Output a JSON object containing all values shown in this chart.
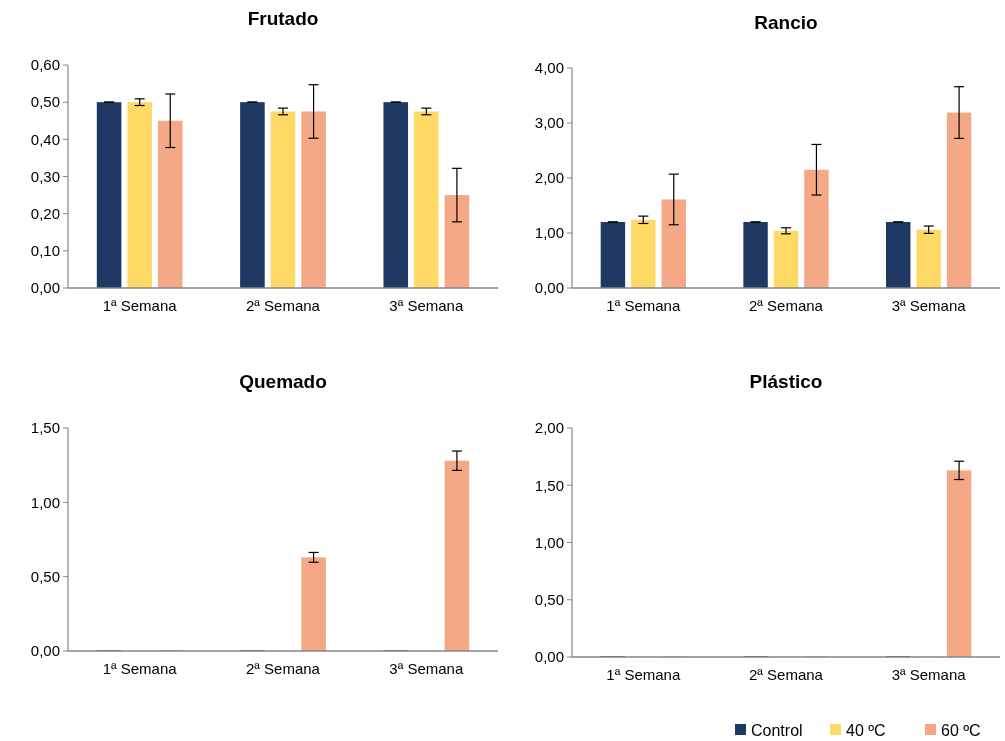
{
  "chart_data": [
    {
      "type": "bar",
      "title": "Frutado",
      "categories": [
        "1ª Semana",
        "2ª Semana",
        "3ª Semana"
      ],
      "ylim": [
        0,
        0.6
      ],
      "yticks": [
        {
          "value": 0,
          "label": "0,00"
        },
        {
          "value": 0.1,
          "label": "0,10"
        },
        {
          "value": 0.2,
          "label": "0,20"
        },
        {
          "value": 0.3,
          "label": "0,30"
        },
        {
          "value": 0.4,
          "label": "0,40"
        },
        {
          "value": 0.5,
          "label": "0,50"
        },
        {
          "value": 0.6,
          "label": "0,60"
        }
      ],
      "series": [
        {
          "color": "#203864",
          "values": [
            0.5,
            0.5,
            0.5
          ],
          "errors": [
            0,
            0,
            0
          ]
        },
        {
          "color": "#ffd966",
          "values": [
            0.5,
            0.475,
            0.475
          ],
          "errors": [
            0.009,
            0.009,
            0.009
          ]
        },
        {
          "color": "#f4a886",
          "values": [
            0.45,
            0.475,
            0.25
          ],
          "errors": [
            0.072,
            0.072,
            0.072
          ]
        }
      ]
    },
    {
      "type": "bar",
      "title": "Rancio",
      "categories": [
        "1ª Semana",
        "2ª Semana",
        "3ª Semana"
      ],
      "ylim": [
        0,
        4
      ],
      "yticks": [
        {
          "value": 0,
          "label": "0,00"
        },
        {
          "value": 1,
          "label": "1,00"
        },
        {
          "value": 2,
          "label": "2,00"
        },
        {
          "value": 3,
          "label": "3,00"
        },
        {
          "value": 4,
          "label": "4,00"
        }
      ],
      "series": [
        {
          "color": "#203864",
          "values": [
            1.2,
            1.2,
            1.2
          ],
          "errors": [
            0,
            0,
            0
          ]
        },
        {
          "color": "#ffd966",
          "values": [
            1.24,
            1.04,
            1.06
          ],
          "errors": [
            0.067,
            0.055,
            0.067
          ]
        },
        {
          "color": "#f4a886",
          "values": [
            1.61,
            2.15,
            3.19
          ],
          "errors": [
            0.46,
            0.46,
            0.47
          ]
        }
      ]
    },
    {
      "type": "bar",
      "title": "Quemado",
      "categories": [
        "1ª Semana",
        "2ª Semana",
        "3ª Semana"
      ],
      "ylim": [
        0,
        1.5
      ],
      "yticks": [
        {
          "value": 0,
          "label": "0,00"
        },
        {
          "value": 0.5,
          "label": "0,50"
        },
        {
          "value": 1,
          "label": "1,00"
        },
        {
          "value": 1.5,
          "label": "1,50"
        }
      ],
      "series": [
        {
          "color": "#203864",
          "values": [
            0,
            0,
            0
          ]
        },
        {
          "color": "#ffd966",
          "values": [
            0,
            0,
            0
          ]
        },
        {
          "color": "#f4a886",
          "values": [
            0,
            0.63,
            1.28
          ],
          "errors": [
            null,
            0.033,
            0.065
          ]
        }
      ]
    },
    {
      "type": "bar",
      "title": "Plástico",
      "categories": [
        "1ª Semana",
        "2ª Semana",
        "3ª Semana"
      ],
      "ylim": [
        0,
        2
      ],
      "yticks": [
        {
          "value": 0,
          "label": "0,00"
        },
        {
          "value": 0.5,
          "label": "0,50"
        },
        {
          "value": 1,
          "label": "1,00"
        },
        {
          "value": 1.5,
          "label": "1,50"
        },
        {
          "value": 2,
          "label": "2,00"
        }
      ],
      "legend": "bottom right",
      "series": [
        {
          "name": "Control",
          "color": "#203864",
          "values": [
            0,
            0,
            0
          ]
        },
        {
          "name": "40 ºC",
          "color": "#ffd966",
          "values": [
            0,
            0,
            0
          ]
        },
        {
          "name": "60 ºC",
          "color": "#f4a886",
          "values": [
            0,
            0,
            1.63
          ],
          "errors": [
            null,
            null,
            0.08
          ]
        }
      ]
    }
  ]
}
